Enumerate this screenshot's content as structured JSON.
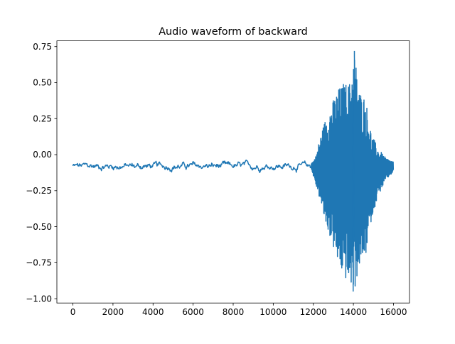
{
  "chart_data": {
    "type": "line",
    "title": "Audio waveform of backward",
    "xlabel": "",
    "ylabel": "",
    "xlim": [
      -800,
      16800
    ],
    "ylim": [
      -1.03,
      0.79
    ],
    "x_ticks": [
      0,
      2000,
      4000,
      6000,
      8000,
      10000,
      12000,
      14000,
      16000
    ],
    "x_tick_labels": [
      "0",
      "2000",
      "4000",
      "6000",
      "8000",
      "10000",
      "12000",
      "14000",
      "16000"
    ],
    "y_ticks": [
      0.75,
      0.5,
      0.25,
      0.0,
      -0.25,
      -0.5,
      -0.75,
      -1.0
    ],
    "y_tick_labels": [
      "0.75",
      "0.50",
      "0.25",
      "0.00",
      "−0.25",
      "−0.50",
      "−0.75",
      "−1.00"
    ],
    "grid": false,
    "legend": "none",
    "series": [
      {
        "color": "#1f77b4",
        "sample_count": 16000,
        "quiet_segment": {
          "x_range": [
            0,
            11900
          ],
          "baseline": -0.08,
          "fluctuation": 0.025
        },
        "envelope_points": [
          {
            "x": 11900,
            "upper": -0.06,
            "lower": -0.1
          },
          {
            "x": 12100,
            "upper": -0.02,
            "lower": -0.2
          },
          {
            "x": 12300,
            "upper": 0.1,
            "lower": -0.3
          },
          {
            "x": 12600,
            "upper": 0.25,
            "lower": -0.48
          },
          {
            "x": 12900,
            "upper": 0.35,
            "lower": -0.6
          },
          {
            "x": 13200,
            "upper": 0.45,
            "lower": -0.75
          },
          {
            "x": 13500,
            "upper": 0.5,
            "lower": -0.85
          },
          {
            "x": 13800,
            "upper": 0.5,
            "lower": -0.9
          },
          {
            "x": 14050,
            "upper": 0.72,
            "lower": -0.95
          },
          {
            "x": 14300,
            "upper": 0.45,
            "lower": -0.78
          },
          {
            "x": 14600,
            "upper": 0.4,
            "lower": -0.72
          },
          {
            "x": 14900,
            "upper": 0.15,
            "lower": -0.45
          },
          {
            "x": 15200,
            "upper": 0.05,
            "lower": -0.3
          },
          {
            "x": 15600,
            "upper": -0.02,
            "lower": -0.18
          },
          {
            "x": 16000,
            "upper": -0.05,
            "lower": -0.12
          }
        ]
      }
    ]
  }
}
